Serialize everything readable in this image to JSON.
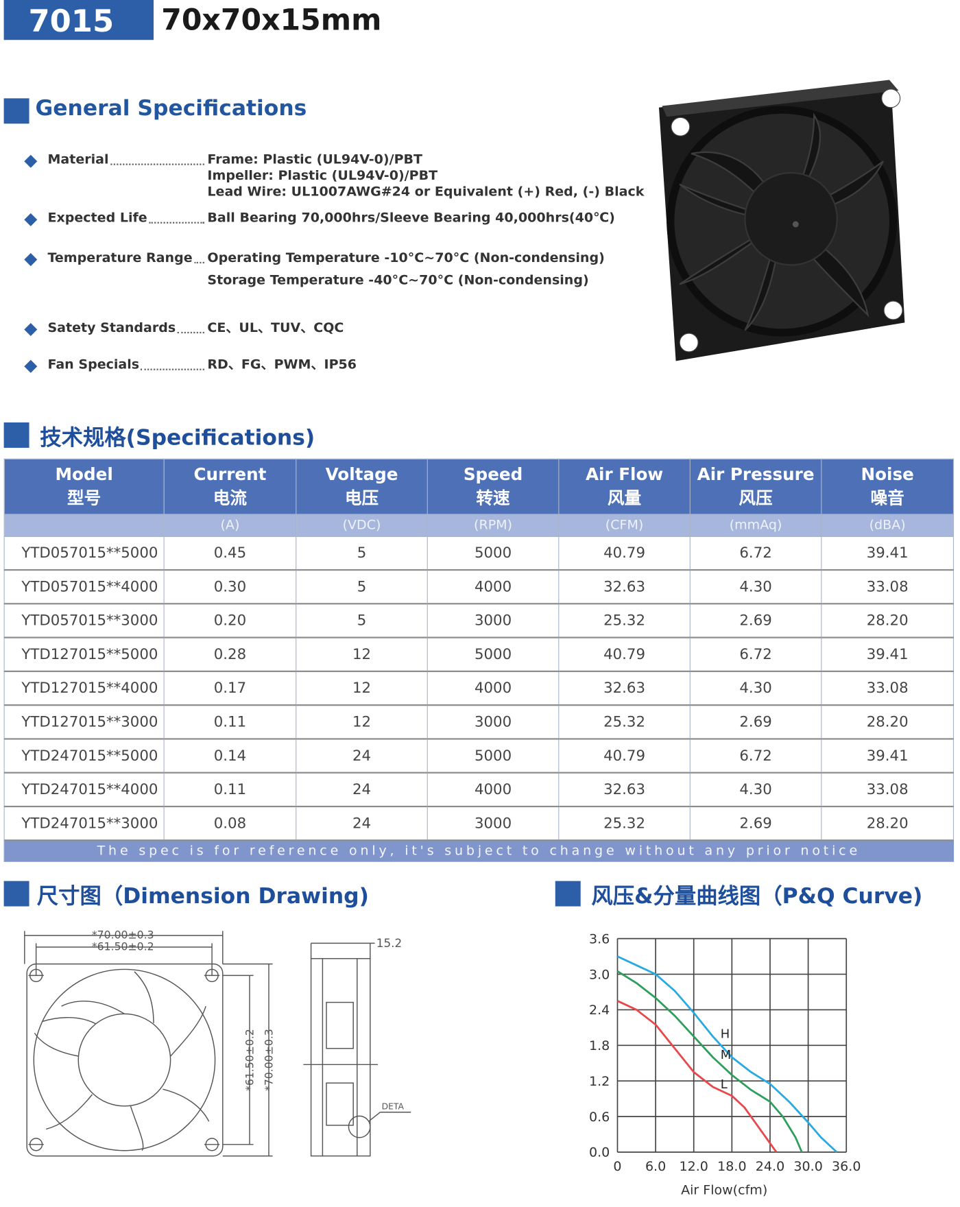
{
  "header": {
    "model": "7015",
    "size": "70x70x15mm"
  },
  "general": {
    "title": "General Specifications",
    "items": [
      {
        "label": "Material",
        "lines": [
          "Frame: Plastic (UL94V-0)/PBT",
          "Impeller: Plastic (UL94V-0)/PBT",
          "Lead Wire: UL1007AWG#24 or Equivalent (+) Red, (-) Black"
        ]
      },
      {
        "label": "Expected Life",
        "lines": [
          "Ball Bearing 70,000hrs/Sleeve Bearing 40,000hrs(40℃)"
        ]
      },
      {
        "label": "Temperature Range",
        "lines": [
          "Operating Temperature -10°C~70°C (Non-condensing)",
          "Storage Temperature -40°C~70°C (Non-condensing)"
        ]
      },
      {
        "label": "Satety Standards",
        "lines": [
          "CE、UL、TUV、CQC"
        ]
      },
      {
        "label": "Fan Specials",
        "lines": [
          "RD、FG、PWM、IP56"
        ]
      }
    ]
  },
  "specs": {
    "title": "技术规格(Specifications)",
    "columns": [
      {
        "en": "Model",
        "cn": "型号"
      },
      {
        "en": "Current",
        "cn": "电流",
        "unit": "(A)"
      },
      {
        "en": "Voltage",
        "cn": "电压",
        "unit": "(VDC)"
      },
      {
        "en": "Speed",
        "cn": "转速",
        "unit": "(RPM)"
      },
      {
        "en": "Air Flow",
        "cn": "风量",
        "unit": "(CFM)"
      },
      {
        "en": "Air Pressure",
        "cn": "风压",
        "unit": "(mmAq)"
      },
      {
        "en": "Noise",
        "cn": "噪音",
        "unit": "(dBA)"
      }
    ],
    "rows": [
      [
        "YTD057015**5000",
        "0.45",
        "5",
        "5000",
        "40.79",
        "6.72",
        "39.41"
      ],
      [
        "YTD057015**4000",
        "0.30",
        "5",
        "4000",
        "32.63",
        "4.30",
        "33.08"
      ],
      [
        "YTD057015**3000",
        "0.20",
        "5",
        "3000",
        "25.32",
        "2.69",
        "28.20"
      ],
      [
        "YTD127015**5000",
        "0.28",
        "12",
        "5000",
        "40.79",
        "6.72",
        "39.41"
      ],
      [
        "YTD127015**4000",
        "0.17",
        "12",
        "4000",
        "32.63",
        "4.30",
        "33.08"
      ],
      [
        "YTD127015**3000",
        "0.11",
        "12",
        "3000",
        "25.32",
        "2.69",
        "28.20"
      ],
      [
        "YTD247015**5000",
        "0.14",
        "24",
        "5000",
        "40.79",
        "6.72",
        "39.41"
      ],
      [
        "YTD247015**4000",
        "0.11",
        "24",
        "4000",
        "32.63",
        "4.30",
        "33.08"
      ],
      [
        "YTD247015**3000",
        "0.08",
        "24",
        "3000",
        "25.32",
        "2.69",
        "28.20"
      ]
    ],
    "note": "The spec is for reference only, it's subject to change without any prior notice"
  },
  "dimension": {
    "title": "尺寸图（Dimension Drawing)",
    "labels": {
      "width": "*70.00±0.3",
      "hole": "*61.50±0.2",
      "depth": "15.2",
      "detail": "DETA"
    }
  },
  "chart_data": {
    "type": "line",
    "title": "风压&分量曲线图（P&Q Curve)",
    "x_label": "Air Flow(cfm)",
    "xlim": [
      0,
      36
    ],
    "xticks": [
      0,
      {
        "value": 6,
        "label": "6.0"
      },
      {
        "value": 12,
        "label": "12.0"
      },
      {
        "value": 18,
        "label": "18.0"
      },
      {
        "value": 24,
        "label": "24.0"
      },
      {
        "value": 30,
        "label": "30.0"
      },
      {
        "value": 36,
        "label": "36.0"
      }
    ],
    "ylim": [
      0,
      3.6
    ],
    "yticks": [
      {
        "value": 0,
        "label": "0.0"
      },
      0.6,
      1.2,
      1.8,
      2.4,
      {
        "value": 3,
        "label": "3.0"
      },
      3.6
    ],
    "grid": true,
    "series": [
      {
        "name": "H",
        "color": "#27a9e1",
        "x": [
          0,
          3,
          6,
          9,
          12,
          15,
          18,
          21,
          24,
          27,
          30,
          32,
          34.5
        ],
        "values": [
          3.3,
          3.15,
          3.0,
          2.72,
          2.35,
          1.95,
          1.6,
          1.35,
          1.15,
          0.85,
          0.5,
          0.25,
          0
        ]
      },
      {
        "name": "M",
        "color": "#2e9e5b",
        "x": [
          0,
          3,
          6,
          9,
          12,
          15,
          18,
          21,
          24,
          26,
          28,
          29
        ],
        "values": [
          3.05,
          2.85,
          2.6,
          2.3,
          1.95,
          1.6,
          1.3,
          1.05,
          0.85,
          0.6,
          0.25,
          0
        ]
      },
      {
        "name": "L",
        "color": "#e8474c",
        "x": [
          0,
          3,
          6,
          9,
          12,
          15,
          18,
          20,
          22,
          24,
          25
        ],
        "values": [
          2.55,
          2.4,
          2.15,
          1.75,
          1.35,
          1.1,
          0.95,
          0.75,
          0.45,
          0.15,
          0
        ]
      }
    ]
  }
}
